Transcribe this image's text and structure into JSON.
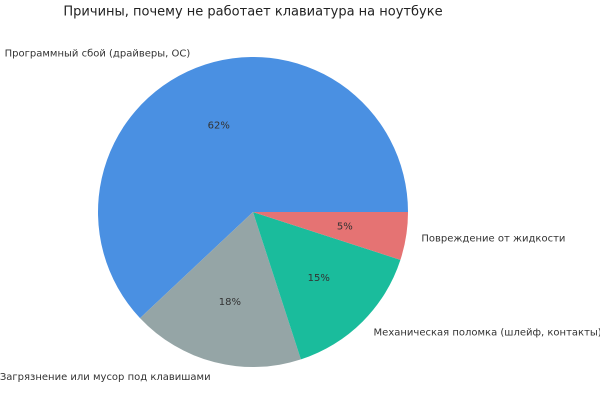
{
  "chart_data": {
    "type": "pie",
    "title": "Причины, почему не работает клавиатура на ноутбуке",
    "categories": [
      "Программный сбой (драйверы, ОС)",
      "Загрязнение или мусор под клавишами",
      "Механическая поломка (шлейф, контакты)",
      "Повреждение от жидкости"
    ],
    "values": [
      62,
      18,
      15,
      5
    ],
    "value_labels": [
      "62%",
      "18%",
      "15%",
      "5%"
    ],
    "colors": [
      "#4a90e2",
      "#95a5a6",
      "#1abc9c",
      "#e57373"
    ]
  }
}
